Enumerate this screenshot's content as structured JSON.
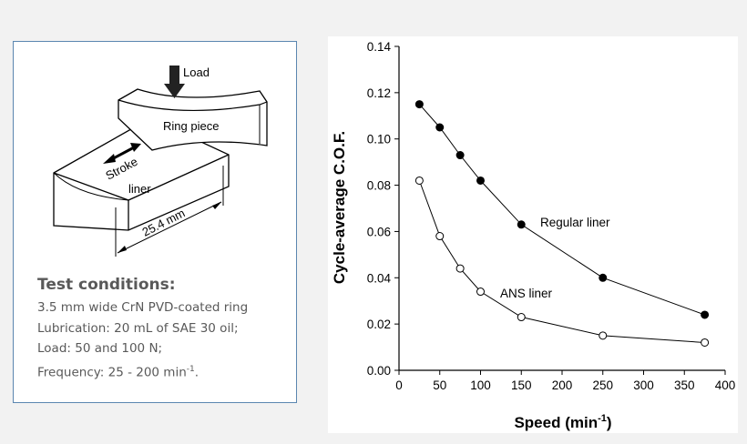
{
  "diagram": {
    "labels": {
      "load": "Load",
      "ring": "Ring piece",
      "stroke": "Stroke",
      "liner": "liner",
      "dimension": "25.4 mm"
    }
  },
  "conditions": {
    "title": "Test conditions:",
    "lines": [
      "3.5 mm wide CrN PVD-coated ring",
      "Lubrication: 20 mL of SAE 30 oil;",
      "Load: 50 and 100 N;"
    ],
    "frequency_prefix": "Frequency: 25 - 200 min",
    "frequency_sup": "-1",
    "frequency_suffix": "."
  },
  "chart_data": {
    "type": "line",
    "xlabel": "Speed (min",
    "xlabel_sup": "-1",
    "xlabel_suffix": ")",
    "ylabel": "Cycle-average C.O.F.",
    "xlim": [
      0,
      400
    ],
    "ylim": [
      0.0,
      0.14
    ],
    "xticks": [
      "0",
      "50",
      "100",
      "150",
      "200",
      "250",
      "300",
      "350",
      "400"
    ],
    "yticks": [
      "0.00",
      "0.02",
      "0.04",
      "0.06",
      "0.08",
      "0.10",
      "0.12",
      "0.14"
    ],
    "grid": false,
    "series": [
      {
        "name": "Regular liner",
        "marker": "filled-circle",
        "color": "#000000",
        "x": [
          25,
          50,
          75,
          100,
          150,
          250,
          375
        ],
        "y": [
          0.115,
          0.105,
          0.093,
          0.082,
          0.063,
          0.04,
          0.024
        ]
      },
      {
        "name": "ANS liner",
        "marker": "open-circle",
        "color": "#000000",
        "x": [
          25,
          50,
          75,
          100,
          150,
          250,
          375
        ],
        "y": [
          0.082,
          0.058,
          0.044,
          0.034,
          0.023,
          0.015,
          0.012
        ]
      }
    ]
  }
}
